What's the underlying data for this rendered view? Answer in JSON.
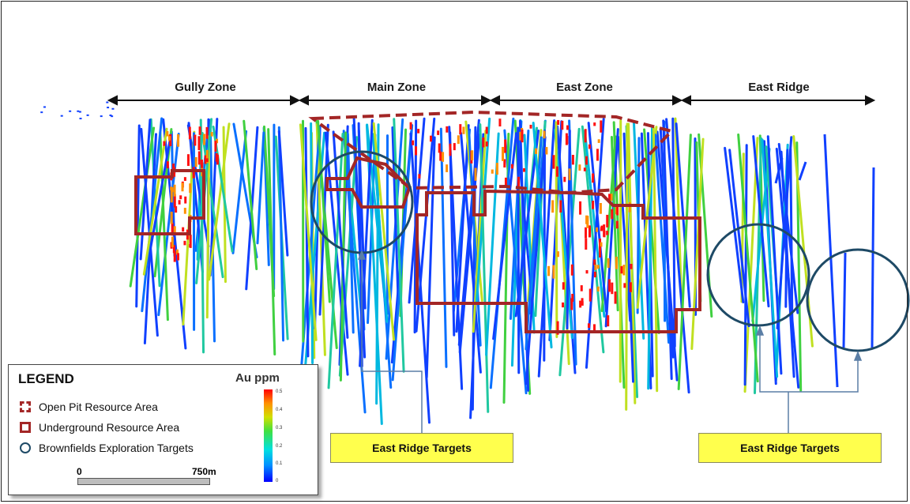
{
  "zones": [
    {
      "label": "Gully Zone"
    },
    {
      "label": "Main Zone"
    },
    {
      "label": "East Zone"
    },
    {
      "label": "East Ridge"
    }
  ],
  "callouts": [
    {
      "label": "East Ridge Targets"
    },
    {
      "label": "East Ridge Targets"
    }
  ],
  "legend": {
    "title": "LEGEND",
    "items": [
      {
        "label": "Open Pit Resource Area",
        "symbol": "dashed-square"
      },
      {
        "label": "Underground Resource Area",
        "symbol": "solid-square"
      },
      {
        "label": "Brownfields Exploration Targets",
        "symbol": "circle"
      }
    ],
    "scale": {
      "start": "0",
      "end": "750m"
    },
    "colorbar": {
      "title": "Au ppm",
      "ticks": [
        "0.5",
        "0.4",
        "0.3",
        "0.2",
        "0.1",
        "0"
      ]
    }
  },
  "colors": {
    "resource_outline": "#a32626",
    "target_circle": "#1e4a66",
    "callout_fill": "#ffff4d",
    "leader_line": "#5b7fa6"
  }
}
